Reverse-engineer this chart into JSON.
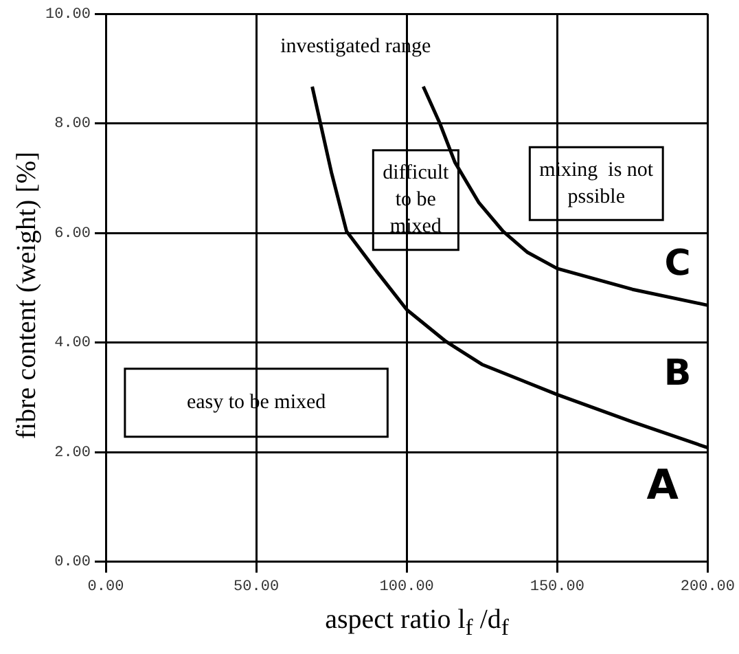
{
  "chart_data": {
    "type": "line",
    "xlabel": "aspect ratio l$_{f}$ /d$_{f}$",
    "ylabel": "fibre content (weight) [%]",
    "xlim": [
      0,
      200
    ],
    "ylim": [
      0,
      10
    ],
    "xticks": [
      {
        "value": 0,
        "label": "0.00"
      },
      {
        "value": 50,
        "label": "50.00"
      },
      {
        "value": 100,
        "label": "100.00"
      },
      {
        "value": 150,
        "label": "150.00"
      },
      {
        "value": 200,
        "label": "200.00"
      }
    ],
    "yticks": [
      {
        "value": 0,
        "label": "0.00"
      },
      {
        "value": 2,
        "label": "2.00"
      },
      {
        "value": 4,
        "label": "4.00"
      },
      {
        "value": 6,
        "label": "6.00"
      },
      {
        "value": 8,
        "label": "8.00"
      },
      {
        "value": 10,
        "label": "10.00"
      }
    ],
    "series": [
      {
        "color": "#000000",
        "x": [
          68.6,
          75,
          80,
          90,
          100,
          113,
          125,
          150,
          175,
          200
        ],
        "values": [
          8.67,
          7.1,
          6.03,
          5.3,
          4.6,
          4.02,
          3.6,
          3.05,
          2.55,
          2.08
        ]
      },
      {
        "color": "#000000",
        "x": [
          105.5,
          111,
          116,
          124,
          132,
          140,
          150,
          175,
          200
        ],
        "values": [
          8.67,
          8.0,
          7.29,
          6.55,
          6.03,
          5.65,
          5.35,
          4.97,
          4.68
        ]
      }
    ],
    "grid": true,
    "legend": false,
    "marker": "none",
    "line_style": "solid",
    "annotations": [
      "investigated range",
      "difficult\nto be\nmixed",
      "mixing  is not\npssible",
      "easy to be mixed",
      "A",
      "B",
      "C"
    ]
  }
}
